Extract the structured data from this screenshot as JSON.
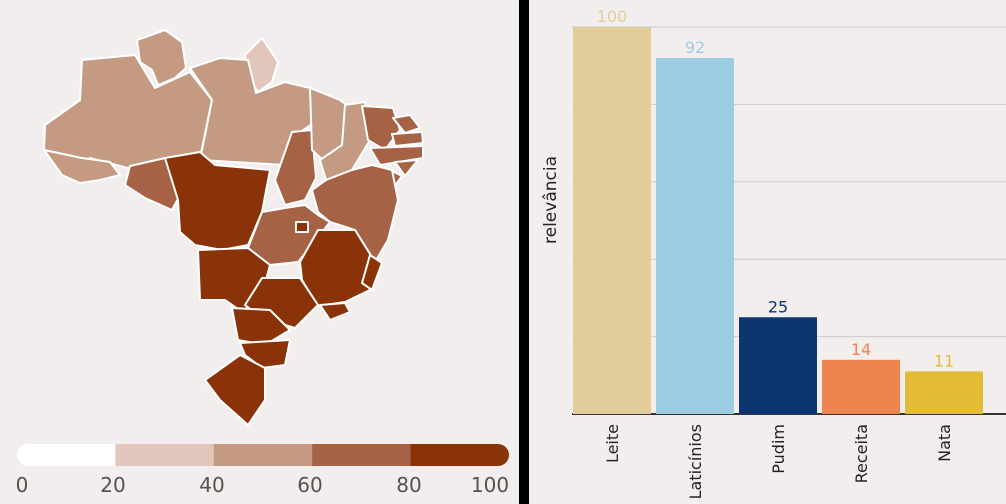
{
  "map": {
    "legend": {
      "ticks": [
        "0",
        "20",
        "40",
        "60",
        "80",
        "100"
      ],
      "colors": [
        "#ffffff",
        "#e2c6bb",
        "#c49a82",
        "#a66245",
        "#8a3208"
      ]
    },
    "regions": [
      {
        "name": "Roraima",
        "level": 2
      },
      {
        "name": "Amapá",
        "level": 1
      },
      {
        "name": "Amazonas",
        "level": 2
      },
      {
        "name": "Pará",
        "level": 2
      },
      {
        "name": "Acre",
        "level": 2
      },
      {
        "name": "Rondônia",
        "level": 3
      },
      {
        "name": "Mato Grosso",
        "level": 4
      },
      {
        "name": "Tocantins",
        "level": 3
      },
      {
        "name": "Maranhão",
        "level": 2
      },
      {
        "name": "Piauí",
        "level": 2
      },
      {
        "name": "Ceará",
        "level": 3
      },
      {
        "name": "Rio Grande do Norte",
        "level": 3
      },
      {
        "name": "Paraíba",
        "level": 3
      },
      {
        "name": "Pernambuco",
        "level": 3
      },
      {
        "name": "Alagoas",
        "level": 3
      },
      {
        "name": "Sergipe",
        "level": 3
      },
      {
        "name": "Bahia",
        "level": 3
      },
      {
        "name": "Goiás",
        "level": 3
      },
      {
        "name": "Distrito Federal",
        "level": 4
      },
      {
        "name": "Minas Gerais",
        "level": 4
      },
      {
        "name": "Mato Grosso do Sul",
        "level": 4
      },
      {
        "name": "São Paulo",
        "level": 4
      },
      {
        "name": "Rio de Janeiro",
        "level": 4
      },
      {
        "name": "Espírito Santo",
        "level": 4
      },
      {
        "name": "Paraná",
        "level": 4
      },
      {
        "name": "Santa Catarina",
        "level": 4
      },
      {
        "name": "Rio Grande do Sul",
        "level": 4
      }
    ]
  },
  "chart_data": {
    "type": "bar",
    "categories": [
      "Leite",
      "Laticínios",
      "Pudim",
      "Receita",
      "Nata"
    ],
    "values": [
      100,
      92,
      25,
      14,
      11
    ],
    "colors": [
      "#e2cd9a",
      "#9acce3",
      "#0d3570",
      "#ef8450",
      "#e3bb36"
    ],
    "ylabel": "relevância",
    "ylim": [
      0,
      100
    ],
    "grid": true
  }
}
